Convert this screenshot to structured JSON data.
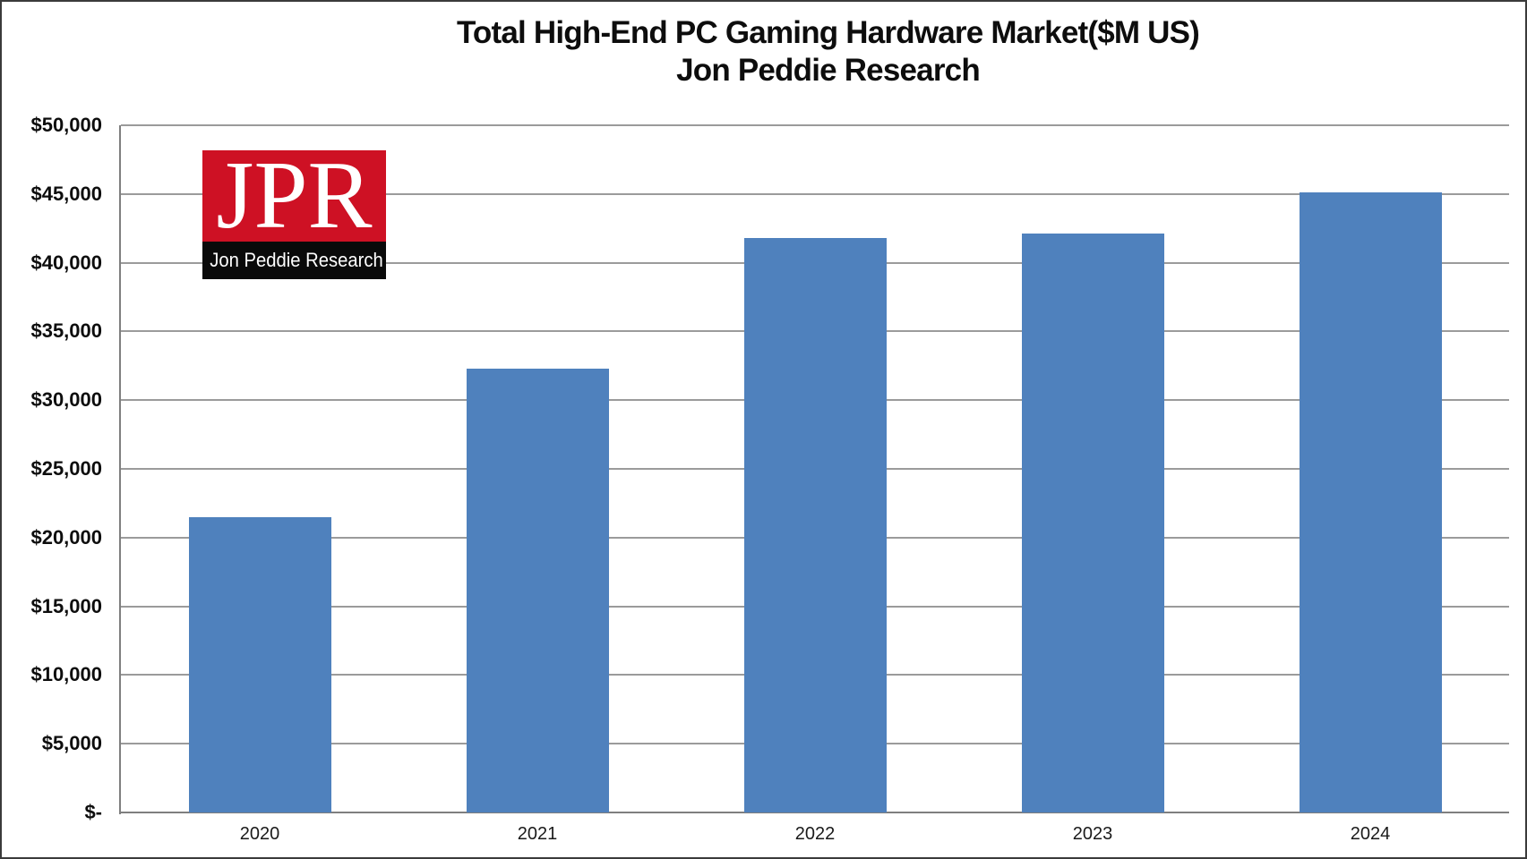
{
  "logo": {
    "acronym": "JPR",
    "name": "Jon Peddie Research",
    "red": "#ce1124",
    "black": "#0a0a0a",
    "text_color": "#ffffff"
  },
  "chart_data": {
    "type": "bar",
    "title_line1": "Total High-End PC Gaming Hardware Market($M US)",
    "title_line2": "Jon Peddie Research",
    "xlabel": "",
    "ylabel": "",
    "categories": [
      "2020",
      "2021",
      "2022",
      "2023",
      "2024"
    ],
    "values": [
      21500,
      32300,
      41800,
      42100,
      45100
    ],
    "ylim": [
      0,
      50000
    ],
    "ytick_step": 5000,
    "ytick_labels": [
      "$-",
      "$5,000",
      "$10,000",
      "$15,000",
      "$20,000",
      "$25,000",
      "$30,000",
      "$35,000",
      "$40,000",
      "$45,000",
      "$50,000"
    ],
    "grid": true,
    "legend": false,
    "bar_color": "#4f81bd",
    "gridline_color": "#9b9b9b",
    "axis_color": "#7f7f7f"
  }
}
